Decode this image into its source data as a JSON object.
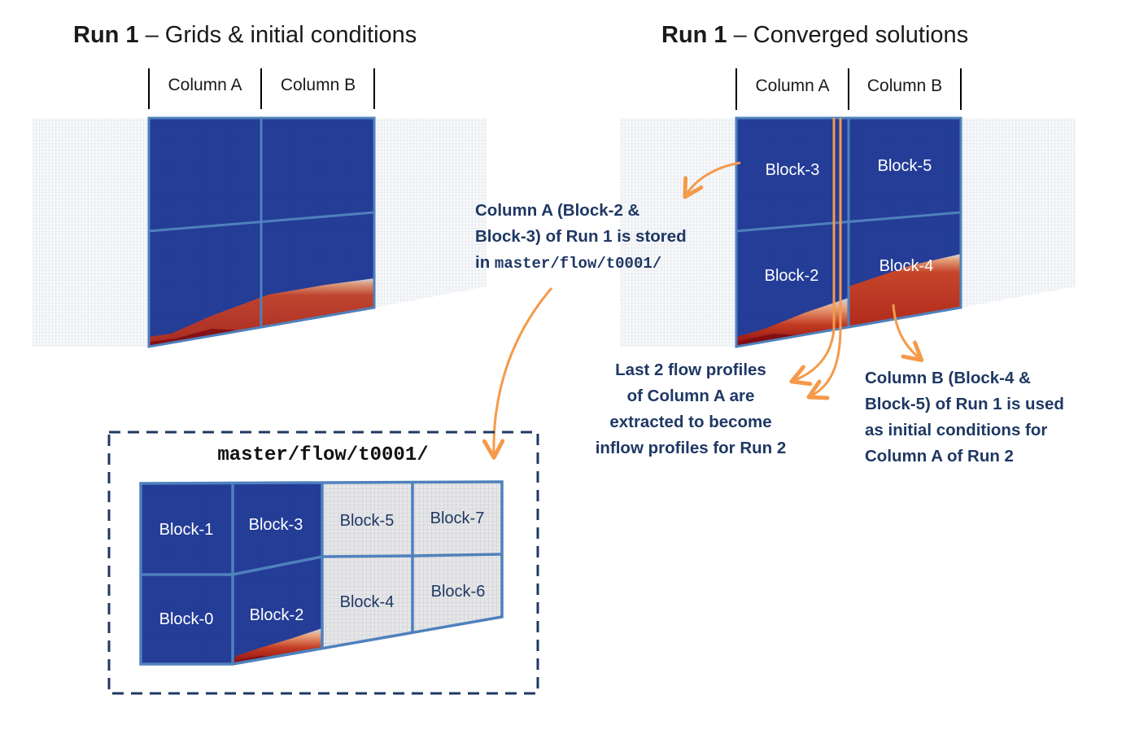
{
  "left_panel": {
    "title_bold": "Run 1",
    "title_rest": " – Grids & initial conditions",
    "columns": [
      "Column A",
      "Column B"
    ]
  },
  "right_panel": {
    "title_bold": "Run 1",
    "title_rest": " – Converged solutions",
    "columns": [
      "Column A",
      "Column B"
    ],
    "blocks": [
      "Block-3",
      "Block-5",
      "Block-2",
      "Block-4"
    ]
  },
  "annotations": {
    "storage_note": {
      "line1": "Column A (Block-2 &",
      "line2": "Block-3) of Run 1 is stored",
      "line3_prefix": "in ",
      "line3_path": "master/flow/t0001/"
    },
    "profiles_note": [
      "Last 2 flow profiles",
      "of Column A are",
      "extracted to become",
      "inflow profiles for Run 2"
    ],
    "initial_note": [
      "Column B (Block-4 &",
      "Block-5) of Run 1 is used",
      "as initial conditions for",
      "Column A of Run 2"
    ]
  },
  "storage_box": {
    "title": "master/flow/t0001/",
    "blocks": [
      "Block-1",
      "Block-3",
      "Block-5",
      "Block-7",
      "Block-0",
      "Block-2",
      "Block-4",
      "Block-6"
    ]
  },
  "colors": {
    "solution_blue": "#233c96",
    "block_border": "#4f81bd",
    "grid_gray": "#dde2ea",
    "arrow_orange": "#f59a4a",
    "text_navy": "#1f3864",
    "dashed_border": "#1f3864"
  }
}
